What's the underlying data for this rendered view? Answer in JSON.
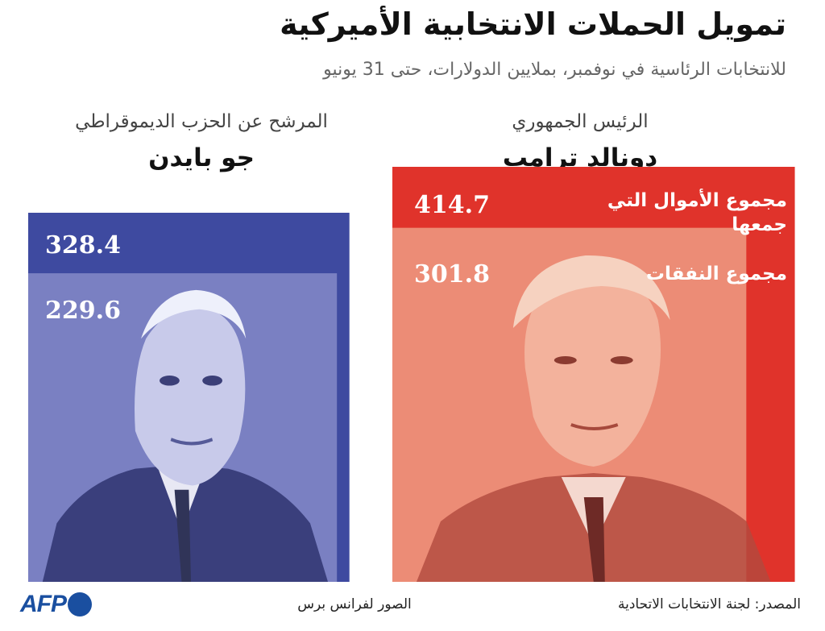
{
  "title": "تمويل الحملات الانتخابية الأميركية",
  "subtitle": "للانتخابات الرئاسية في نوفمبر، بملايين الدولارات، حتى 31 يونيو",
  "candidates": [
    {
      "role": "المرشح عن الحزب الديموقراطي",
      "name": "جو بايدن"
    },
    {
      "role": "الرئيس الجمهوري",
      "name": "دونالد ترامب"
    }
  ],
  "labels": {
    "raised": "مجموع الأموال التي جمعها",
    "spent": "مجموع النفقات"
  },
  "footer": {
    "source": "المصدر: لجنة الانتخابات الاتحادية",
    "photos": "الصور لفرانس برس",
    "logo": "AFP"
  },
  "colors": {
    "biden_outer": "#3e4aa0",
    "biden_inner": "#7a80c2",
    "trump_outer": "#e0332b",
    "trump_inner": "#ec8c76"
  },
  "chart_data": {
    "type": "bar",
    "categories": [
      "جو بايدن",
      "دونالد ترامب"
    ],
    "series": [
      {
        "name": "مجموع الأموال التي جمعها",
        "values": [
          328.4,
          414.7
        ]
      },
      {
        "name": "مجموع النفقات",
        "values": [
          229.6,
          301.8
        ]
      }
    ],
    "title": "تمويل الحملات الانتخابية الأميركية",
    "subtitle": "للانتخابات الرئاسية في نوفمبر، بملايين الدولارات، حتى 31 يونيو"
  }
}
